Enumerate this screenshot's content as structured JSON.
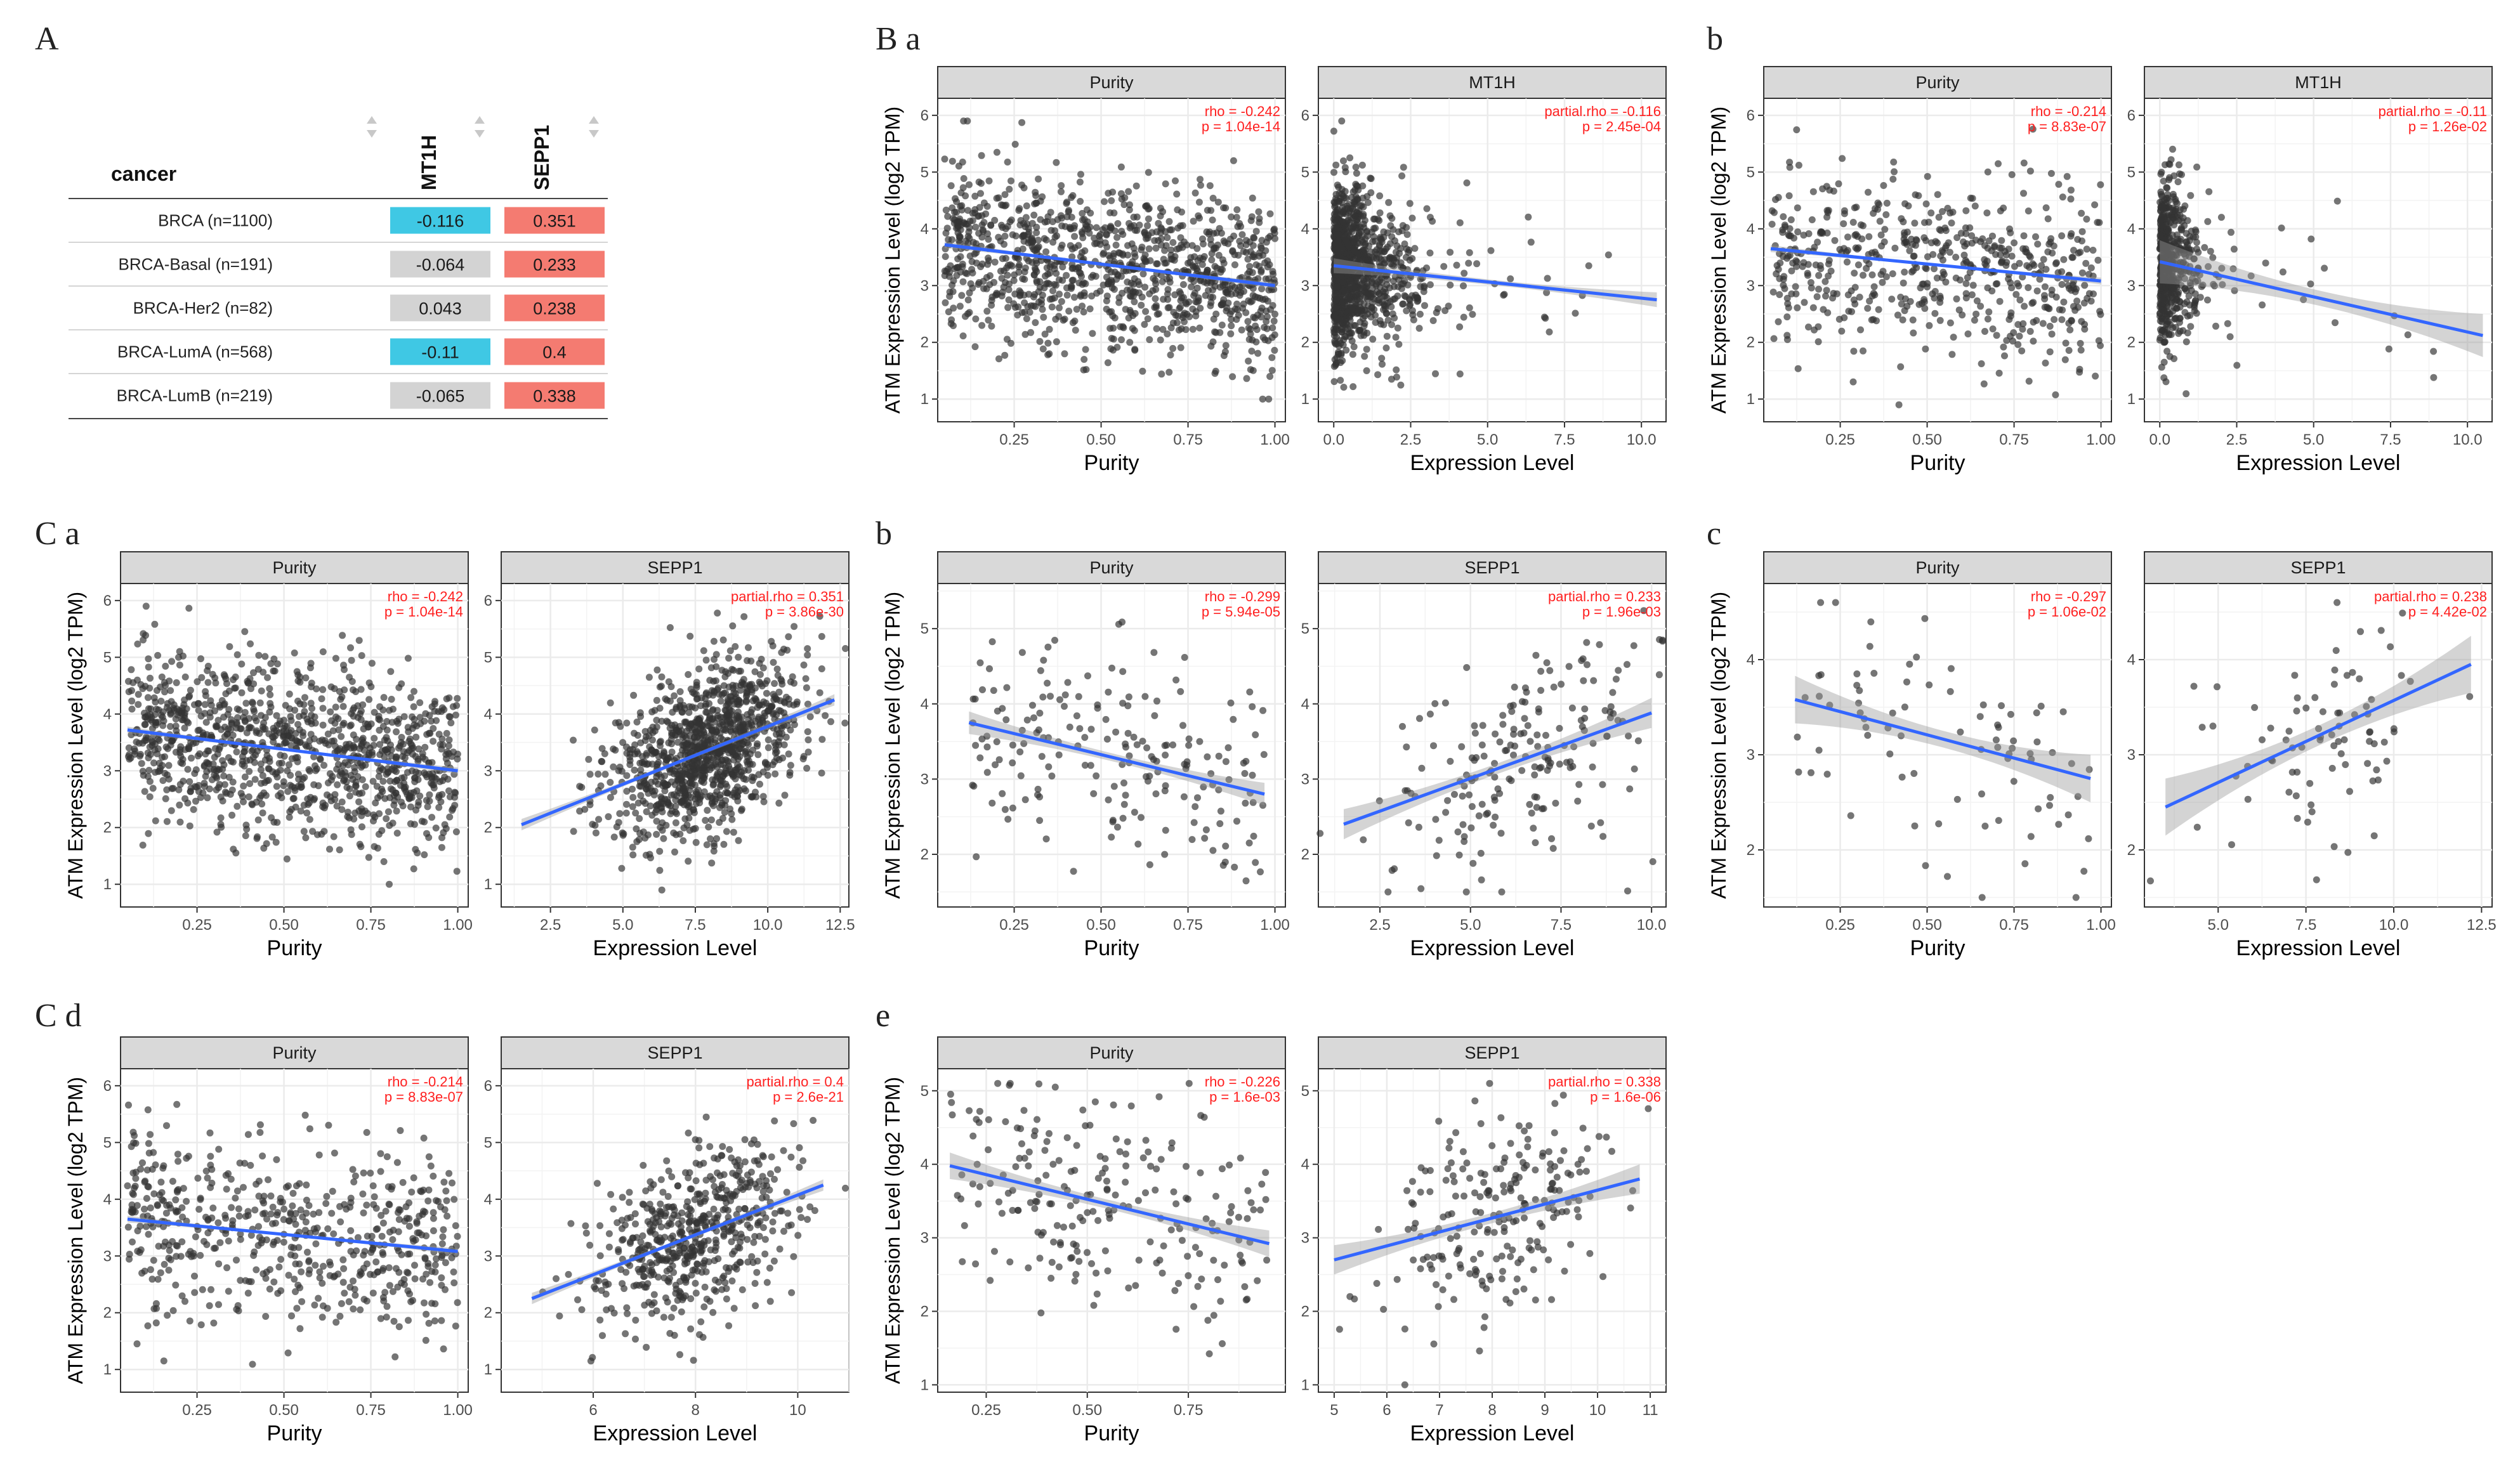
{
  "panel_labels": {
    "A": "A",
    "Ba": "B a",
    "Bb": "b",
    "Ca": "C a",
    "Cb": "b",
    "Cc": "c",
    "Cd": "C d",
    "Ce": "e"
  },
  "table": {
    "header_cancer": "cancer",
    "col1": "MT1H",
    "col2": "SEPP1",
    "rows": [
      {
        "cancer": "BRCA (n=1100)",
        "v1": "-0.116",
        "v2": "0.351",
        "c1": "#3fc8e4",
        "c2": "#f47b71"
      },
      {
        "cancer": "BRCA-Basal (n=191)",
        "v1": "-0.064",
        "v2": "0.233",
        "c1": "#d3d3d3",
        "c2": "#f47b71"
      },
      {
        "cancer": "BRCA-Her2 (n=82)",
        "v1": "0.043",
        "v2": "0.238",
        "c1": "#d3d3d3",
        "c2": "#f47b71"
      },
      {
        "cancer": "BRCA-LumA (n=568)",
        "v1": "-0.11",
        "v2": "0.4",
        "c1": "#3fc8e4",
        "c2": "#f47b71"
      },
      {
        "cancer": "BRCA-LumB (n=219)",
        "v1": "-0.065",
        "v2": "0.338",
        "c1": "#d3d3d3",
        "c2": "#f47b71"
      }
    ]
  },
  "colors": {
    "fit_line": "#3366ff",
    "band": "#999999",
    "points": "#333333",
    "strip": "#d9d9d9",
    "grid": "#ebebeb",
    "annotation": "#ff1f1f"
  },
  "chart_data": [
    {
      "id": "Ba",
      "type": "scatter",
      "ylabel": "ATM Expression Level (log2 TPM)",
      "ylim": [
        0.6,
        6.3
      ],
      "yticks": [
        1,
        2,
        3,
        4,
        5,
        6
      ],
      "seed": 11,
      "facets": [
        {
          "strip": "Purity",
          "xlabel": "Purity",
          "xlim": [
            0.03,
            1.03
          ],
          "xticks": [
            0.25,
            0.5,
            0.75,
            1.0
          ],
          "xticklabels": [
            "0.25",
            "0.50",
            "0.75",
            "1.00"
          ],
          "ann1": "rho = -0.242",
          "ann2": "p = 1.04e-14",
          "fit": [
            0.05,
            3.72,
            1.0,
            3.0
          ],
          "band": 0.06,
          "n": 1100,
          "xdist": "uniform",
          "ysd": 0.75,
          "ymin": 1.0,
          "ymax": 5.9
        },
        {
          "strip": "MT1H",
          "xlabel": "Expression Level",
          "xlim": [
            -0.5,
            10.8
          ],
          "xticks": [
            0,
            2.5,
            5,
            7.5,
            10
          ],
          "xticklabels": [
            "0.0",
            "2.5",
            "5.0",
            "7.5",
            "10.0"
          ],
          "ann1": "partial.rho = -0.116",
          "ann2": "p = 2.45e-04",
          "fit": [
            0.0,
            3.35,
            10.5,
            2.75
          ],
          "band": 0.13,
          "n": 1100,
          "xdist": "expo",
          "xscale": 0.8,
          "ysd": 0.7,
          "ymin": 0.9,
          "ymax": 5.9
        }
      ]
    },
    {
      "id": "Bb",
      "type": "scatter",
      "ylabel": "ATM Expression Level (log2 TPM)",
      "ylim": [
        0.6,
        6.3
      ],
      "yticks": [
        1,
        2,
        3,
        4,
        5,
        6
      ],
      "seed": 23,
      "facets": [
        {
          "strip": "Purity",
          "xlabel": "Purity",
          "xlim": [
            0.03,
            1.03
          ],
          "xticks": [
            0.25,
            0.5,
            0.75,
            1.0
          ],
          "xticklabels": [
            "0.25",
            "0.50",
            "0.75",
            "1.00"
          ],
          "ann1": "rho = -0.214",
          "ann2": "p = 8.83e-07",
          "fit": [
            0.05,
            3.65,
            1.0,
            3.08
          ],
          "band": 0.06,
          "n": 568,
          "xdist": "uniform",
          "ysd": 0.75,
          "ymin": 0.9,
          "ymax": 5.8
        },
        {
          "strip": "MT1H",
          "xlabel": "Expression Level",
          "xlim": [
            -0.5,
            10.8
          ],
          "xticks": [
            0,
            2.5,
            5,
            7.5,
            10
          ],
          "xticklabels": [
            "0.0",
            "2.5",
            "5.0",
            "7.5",
            "10.0"
          ],
          "ann1": "partial.rho = -0.11",
          "ann2": "p = 1.26e-02",
          "fit": [
            0.0,
            3.42,
            10.5,
            2.12
          ],
          "band": 0.38,
          "n": 568,
          "xdist": "expo",
          "xscale": 0.45,
          "ysd": 0.7,
          "ymin": 0.9,
          "ymax": 5.8
        }
      ]
    },
    {
      "id": "Ca",
      "type": "scatter",
      "ylabel": "ATM Expression Level (log2 TPM)",
      "ylim": [
        0.6,
        6.3
      ],
      "yticks": [
        1,
        2,
        3,
        4,
        5,
        6
      ],
      "seed": 37,
      "facets": [
        {
          "strip": "Purity",
          "xlabel": "Purity",
          "xlim": [
            0.03,
            1.03
          ],
          "xticks": [
            0.25,
            0.5,
            0.75,
            1.0
          ],
          "xticklabels": [
            "0.25",
            "0.50",
            "0.75",
            "1.00"
          ],
          "ann1": "rho = -0.242",
          "ann2": "p = 1.04e-14",
          "fit": [
            0.05,
            3.72,
            1.0,
            3.0
          ],
          "band": 0.06,
          "n": 1100,
          "xdist": "uniform",
          "ysd": 0.75,
          "ymin": 1.0,
          "ymax": 5.9
        },
        {
          "strip": "SEPP1",
          "xlabel": "Expression Level",
          "xlim": [
            0.8,
            12.8
          ],
          "xticks": [
            2.5,
            5,
            7.5,
            10,
            12.5
          ],
          "xticklabels": [
            "2.5",
            "5.0",
            "7.5",
            "10.0",
            "12.5"
          ],
          "ann1": "partial.rho = 0.351",
          "ann2": "p = 3.86e-30",
          "fit": [
            1.5,
            2.05,
            12.3,
            4.25
          ],
          "band": 0.1,
          "n": 1100,
          "xdist": "normal",
          "xmean": 7.8,
          "xsd": 1.6,
          "ysd": 0.7,
          "ymin": 0.9,
          "ymax": 5.9
        }
      ]
    },
    {
      "id": "Cb",
      "type": "scatter",
      "ylabel": "ATM Expression Level (log2 TPM)",
      "ylim": [
        1.3,
        5.6
      ],
      "yticks": [
        2,
        3,
        4,
        5
      ],
      "seed": 41,
      "facets": [
        {
          "strip": "Purity",
          "xlabel": "Purity",
          "xlim": [
            0.03,
            1.03
          ],
          "xticks": [
            0.25,
            0.5,
            0.75,
            1.0
          ],
          "xticklabels": [
            "0.25",
            "0.50",
            "0.75",
            "1.00"
          ],
          "ann1": "rho = -0.299",
          "ann2": "p = 5.94e-05",
          "fit": [
            0.12,
            3.75,
            0.97,
            2.8
          ],
          "band": 0.15,
          "n": 191,
          "xdist": "uniform",
          "ysd": 0.7,
          "ymin": 1.5,
          "ymax": 5.3
        },
        {
          "strip": "SEPP1",
          "xlabel": "Expression Level",
          "xlim": [
            0.8,
            10.4
          ],
          "xticks": [
            2.5,
            5,
            7.5,
            10
          ],
          "xticklabels": [
            "2.5",
            "5.0",
            "7.5",
            "10.0"
          ],
          "ann1": "partial.rho = 0.233",
          "ann2": "p = 1.96e-03",
          "fit": [
            1.5,
            2.4,
            10.0,
            3.88
          ],
          "band": 0.2,
          "n": 191,
          "xdist": "normal",
          "xmean": 6.3,
          "xsd": 1.8,
          "ysd": 0.7,
          "ymin": 1.5,
          "ymax": 5.3
        }
      ]
    },
    {
      "id": "Cc",
      "type": "scatter",
      "ylabel": "ATM Expression Level (log2 TPM)",
      "ylim": [
        1.4,
        4.8
      ],
      "yticks": [
        2,
        3,
        4
      ],
      "seed": 53,
      "facets": [
        {
          "strip": "Purity",
          "xlabel": "Purity",
          "xlim": [
            0.03,
            1.03
          ],
          "xticks": [
            0.25,
            0.5,
            0.75,
            1.0
          ],
          "xticklabels": [
            "0.25",
            "0.50",
            "0.75",
            "1.00"
          ],
          "ann1": "rho = -0.297",
          "ann2": "p = 1.06e-02",
          "fit": [
            0.12,
            3.58,
            0.97,
            2.75
          ],
          "band": 0.25,
          "n": 82,
          "xdist": "uniform",
          "ysd": 0.6,
          "ymin": 1.5,
          "ymax": 4.6
        },
        {
          "strip": "SEPP1",
          "xlabel": "Expression Level",
          "xlim": [
            2.9,
            12.8
          ],
          "xticks": [
            5,
            7.5,
            10,
            12.5
          ],
          "xticklabels": [
            "5.0",
            "7.5",
            "10.0",
            "12.5"
          ],
          "ann1": "partial.rho = 0.238",
          "ann2": "p = 4.42e-02",
          "fit": [
            3.5,
            2.45,
            12.2,
            3.95
          ],
          "band": 0.3,
          "n": 82,
          "xdist": "normal",
          "xmean": 7.9,
          "xsd": 1.7,
          "ysd": 0.6,
          "ymin": 1.5,
          "ymax": 4.6
        }
      ]
    },
    {
      "id": "Cd",
      "type": "scatter",
      "ylabel": "ATM Expression Level (log2 TPM)",
      "ylim": [
        0.6,
        6.3
      ],
      "yticks": [
        1,
        2,
        3,
        4,
        5,
        6
      ],
      "seed": 67,
      "facets": [
        {
          "strip": "Purity",
          "xlabel": "Purity",
          "xlim": [
            0.03,
            1.03
          ],
          "xticks": [
            0.25,
            0.5,
            0.75,
            1.0
          ],
          "xticklabels": [
            "0.25",
            "0.50",
            "0.75",
            "1.00"
          ],
          "ann1": "rho = -0.214",
          "ann2": "p = 8.83e-07",
          "fit": [
            0.05,
            3.65,
            1.0,
            3.08
          ],
          "band": 0.06,
          "n": 568,
          "xdist": "uniform",
          "ysd": 0.75,
          "ymin": 0.9,
          "ymax": 5.8
        },
        {
          "strip": "SEPP1",
          "xlabel": "Expression Level",
          "xlim": [
            4.2,
            11.0
          ],
          "xticks": [
            6,
            8,
            10
          ],
          "xticklabels": [
            "6",
            "8",
            "10"
          ],
          "ann1": "partial.rho = 0.4",
          "ann2": "p = 2.6e-21",
          "fit": [
            4.8,
            2.25,
            10.5,
            4.25
          ],
          "band": 0.1,
          "n": 568,
          "xdist": "normal",
          "xmean": 8.0,
          "xsd": 1.0,
          "ysd": 0.7,
          "ymin": 0.9,
          "ymax": 5.8
        }
      ]
    },
    {
      "id": "Ce",
      "type": "scatter",
      "ylabel": "ATM Expression Level (log2 TPM)",
      "ylim": [
        0.9,
        5.3
      ],
      "yticks": [
        1,
        2,
        3,
        4,
        5
      ],
      "seed": 79,
      "facets": [
        {
          "strip": "Purity",
          "xlabel": "Purity",
          "xlim": [
            0.13,
            0.99
          ],
          "xticks": [
            0.25,
            0.5,
            0.75
          ],
          "xticklabels": [
            "0.25",
            "0.50",
            "0.75"
          ],
          "ann1": "rho = -0.226",
          "ann2": "p = 1.6e-03",
          "fit": [
            0.16,
            3.98,
            0.95,
            2.92
          ],
          "band": 0.18,
          "n": 219,
          "xdist": "uniform",
          "ysd": 0.7,
          "ymin": 1.0,
          "ymax": 5.1
        },
        {
          "strip": "SEPP1",
          "xlabel": "Expression Level",
          "xlim": [
            4.7,
            11.3
          ],
          "xticks": [
            5,
            6,
            7,
            8,
            9,
            10,
            11
          ],
          "xticklabels": [
            "5",
            "6",
            "7",
            "8",
            "9",
            "10",
            "11"
          ],
          "ann1": "partial.rho = 0.338",
          "ann2": "p = 1.6e-06",
          "fit": [
            5.0,
            2.7,
            10.8,
            3.8
          ],
          "band": 0.2,
          "n": 219,
          "xdist": "normal",
          "xmean": 8.0,
          "xsd": 1.1,
          "ysd": 0.7,
          "ymin": 1.0,
          "ymax": 5.1
        }
      ]
    }
  ]
}
